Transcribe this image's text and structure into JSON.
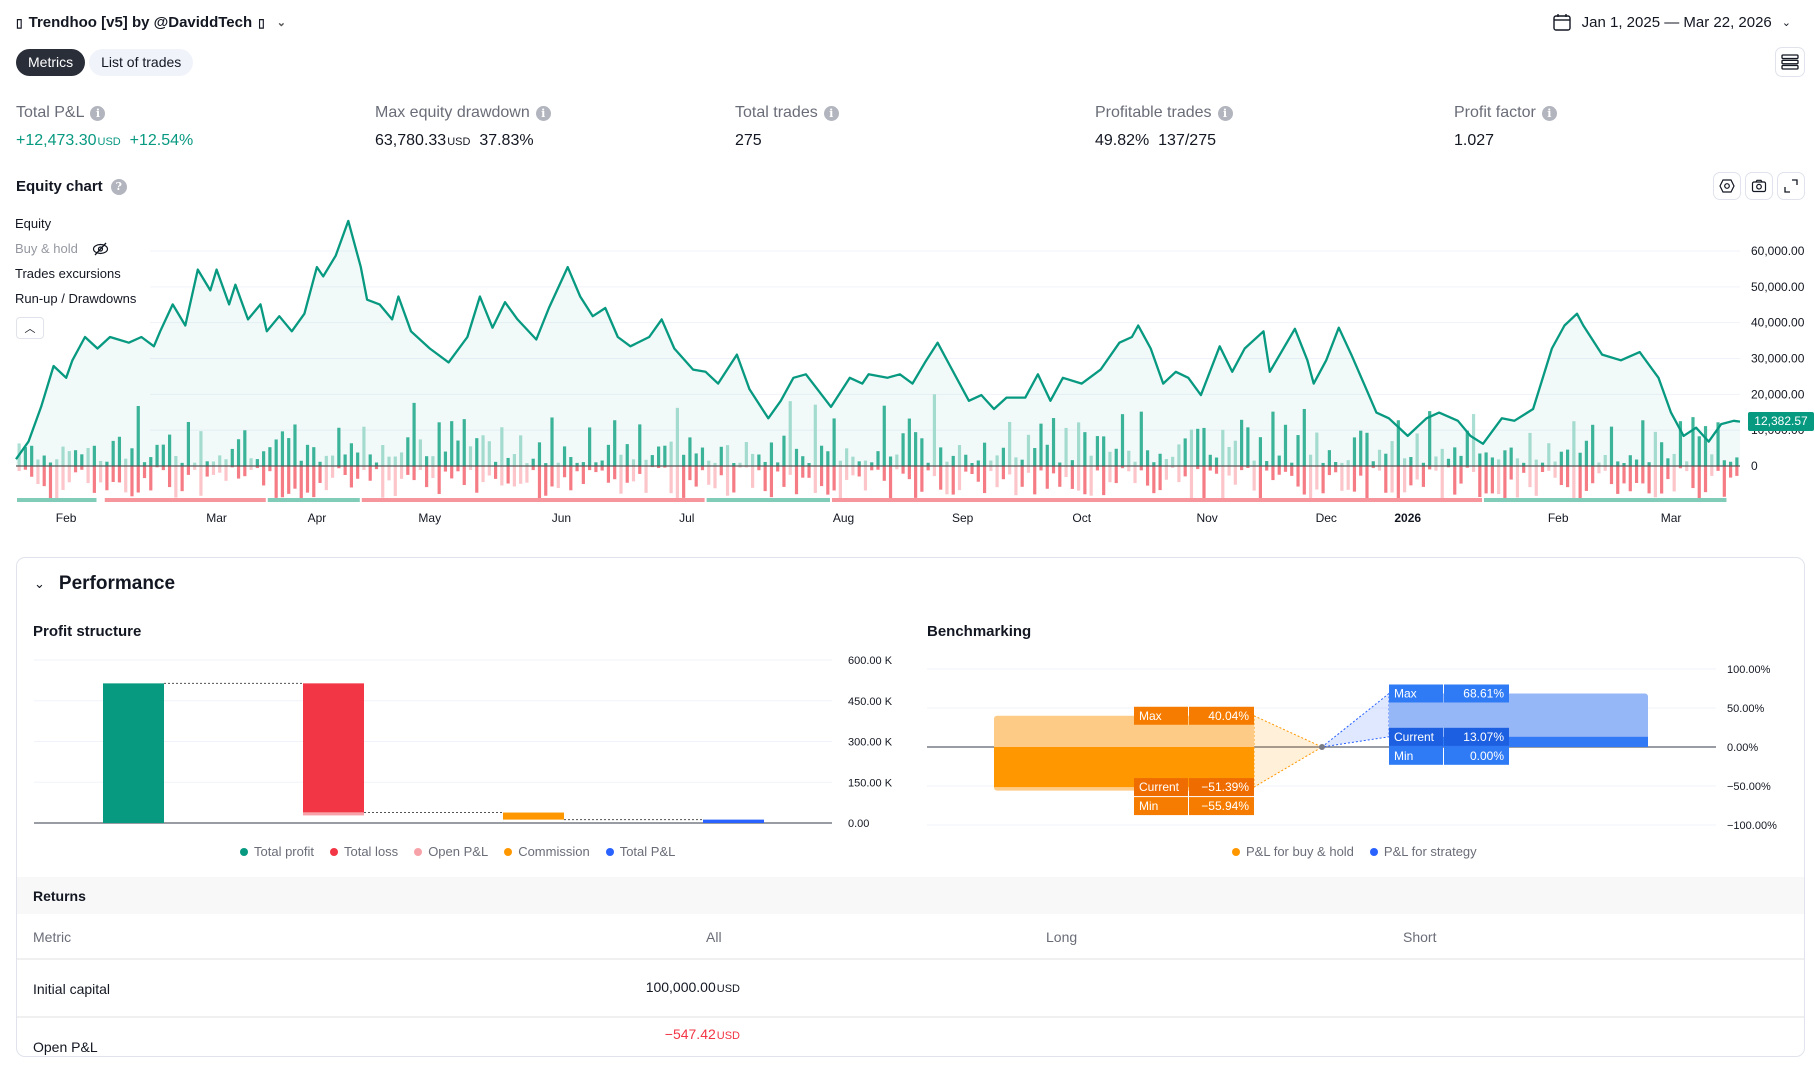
{
  "header": {
    "title": "Trendhoo [v5] by @DaviddTech",
    "date_range": "Jan 1, 2025 — Mar 22, 2026"
  },
  "tabs": [
    {
      "label": "Metrics",
      "active": true
    },
    {
      "label": "List of trades",
      "active": false
    }
  ],
  "metrics": [
    {
      "label": "Total P&L",
      "value": "+12,473.30",
      "unit": "USD",
      "extra": "+12.54%",
      "color": "#089981"
    },
    {
      "label": "Max equity drawdown",
      "value": "63,780.33",
      "unit": "USD",
      "extra": "37.83%"
    },
    {
      "label": "Total trades",
      "value": "275"
    },
    {
      "label": "Profitable trades",
      "value": "49.82%",
      "extra": "137/275"
    },
    {
      "label": "Profit factor",
      "value": "1.027"
    }
  ],
  "equity_chart": {
    "title": "Equity chart",
    "legend": [
      "Equity",
      "Buy & hold",
      "Trades excursions",
      "Run-up / Drawdowns"
    ],
    "hidden_series": [
      "Buy & hold"
    ],
    "last_value_label": "12,382.57"
  },
  "chart_data": [
    {
      "type": "line",
      "title": "Equity chart",
      "ylim": [
        -17600,
        71700
      ],
      "y_ticks": [
        "60,000.00",
        "50,000.00",
        "40,000.00",
        "30,000.00",
        "20,000.00",
        "10,000.00",
        "0"
      ],
      "y_tick_values": [
        60000,
        50000,
        40000,
        30000,
        20000,
        10000,
        0
      ],
      "x_ticks": [
        {
          "label": "Feb",
          "trade": 8
        },
        {
          "label": "Mar",
          "trade": 32
        },
        {
          "label": "Apr",
          "trade": 48
        },
        {
          "label": "May",
          "trade": 66
        },
        {
          "label": "Jun",
          "trade": 87
        },
        {
          "label": "Jul",
          "trade": 107
        },
        {
          "label": "Aug",
          "trade": 132
        },
        {
          "label": "Sep",
          "trade": 151
        },
        {
          "label": "Oct",
          "trade": 170
        },
        {
          "label": "Nov",
          "trade": 190
        },
        {
          "label": "Dec",
          "trade": 209
        },
        {
          "label": "2026",
          "trade": 222,
          "bold": true
        },
        {
          "label": "Feb",
          "trade": 246
        },
        {
          "label": "Mar",
          "trade": 264
        }
      ],
      "xlim": [
        0,
        275
      ],
      "series": [
        {
          "name": "Equity",
          "color": "#089981",
          "points": [
            [
              0,
              1900
            ],
            [
              2,
              6800
            ],
            [
              4,
              16500
            ],
            [
              6,
              27900
            ],
            [
              8,
              24600
            ],
            [
              9,
              29500
            ],
            [
              11,
              36000
            ],
            [
              13,
              32800
            ],
            [
              15,
              36000
            ],
            [
              18,
              34400
            ],
            [
              20,
              36000
            ],
            [
              22,
              33400
            ],
            [
              23,
              37600
            ],
            [
              25,
              45100
            ],
            [
              27,
              39200
            ],
            [
              29,
              54800
            ],
            [
              31,
              49000
            ],
            [
              32,
              54800
            ],
            [
              34,
              45100
            ],
            [
              35,
              50600
            ],
            [
              37,
              40900
            ],
            [
              39,
              45100
            ],
            [
              40,
              37600
            ],
            [
              42,
              41800
            ],
            [
              44,
              37600
            ],
            [
              46,
              42500
            ],
            [
              48,
              55500
            ],
            [
              49,
              52900
            ],
            [
              51,
              58700
            ],
            [
              53,
              68400
            ],
            [
              55,
              55500
            ],
            [
              56,
              46400
            ],
            [
              58,
              45100
            ],
            [
              60,
              40900
            ],
            [
              61,
              47300
            ],
            [
              63,
              37600
            ],
            [
              66,
              32800
            ],
            [
              69,
              28900
            ],
            [
              72,
              36000
            ],
            [
              74,
              47300
            ],
            [
              76,
              38600
            ],
            [
              78,
              45700
            ],
            [
              80,
              40900
            ],
            [
              83,
              35300
            ],
            [
              85,
              44100
            ],
            [
              88,
              55500
            ],
            [
              90,
              47300
            ],
            [
              92,
              41800
            ],
            [
              94,
              44100
            ],
            [
              96,
              36000
            ],
            [
              98,
              33400
            ],
            [
              101,
              36000
            ],
            [
              103,
              40900
            ],
            [
              105,
              32800
            ],
            [
              108,
              26900
            ],
            [
              110,
              26300
            ],
            [
              112,
              23000
            ],
            [
              115,
              31100
            ],
            [
              117,
              21400
            ],
            [
              120,
              13300
            ],
            [
              122,
              18200
            ],
            [
              124,
              24600
            ],
            [
              126,
              25600
            ],
            [
              130,
              16500
            ],
            [
              133,
              24600
            ],
            [
              135,
              23000
            ],
            [
              136,
              25600
            ],
            [
              139,
              24600
            ],
            [
              141,
              25600
            ],
            [
              143,
              23000
            ],
            [
              145,
              28900
            ],
            [
              147,
              34400
            ],
            [
              149,
              27900
            ],
            [
              152,
              18200
            ],
            [
              154,
              19800
            ],
            [
              156,
              15900
            ],
            [
              158,
              19100
            ],
            [
              161,
              19100
            ],
            [
              163,
              25600
            ],
            [
              165,
              18200
            ],
            [
              167,
              24600
            ],
            [
              170,
              23000
            ],
            [
              173,
              26900
            ],
            [
              176,
              34400
            ],
            [
              178,
              36000
            ],
            [
              179,
              39200
            ],
            [
              181,
              32800
            ],
            [
              183,
              23000
            ],
            [
              185,
              26300
            ],
            [
              187,
              24600
            ],
            [
              189,
              19800
            ],
            [
              192,
              33400
            ],
            [
              194,
              26300
            ],
            [
              196,
              32800
            ],
            [
              199,
              37600
            ],
            [
              200,
              26300
            ],
            [
              204,
              38300
            ],
            [
              206,
              29500
            ],
            [
              207,
              23000
            ],
            [
              209,
              29500
            ],
            [
              211,
              38600
            ],
            [
              213,
              31100
            ],
            [
              215,
              23000
            ],
            [
              217,
              14900
            ],
            [
              219,
              13300
            ],
            [
              222,
              8400
            ],
            [
              225,
              13300
            ],
            [
              227,
              14900
            ],
            [
              230,
              12600
            ],
            [
              232,
              8400
            ],
            [
              234,
              6200
            ],
            [
              237,
              13300
            ],
            [
              239,
              12600
            ],
            [
              242,
              15900
            ],
            [
              245,
              32800
            ],
            [
              247,
              39200
            ],
            [
              249,
              42500
            ],
            [
              250,
              39200
            ],
            [
              253,
              31100
            ],
            [
              256,
              29500
            ],
            [
              259,
              31800
            ],
            [
              262,
              24600
            ],
            [
              264,
              14900
            ],
            [
              266,
              8400
            ],
            [
              268,
              10700
            ],
            [
              270,
              6800
            ],
            [
              272,
              11700
            ],
            [
              274,
              12600
            ],
            [
              275,
              12382.57
            ]
          ]
        }
      ],
      "runup_drawdown_segments": [
        {
          "from": 0,
          "to": 13,
          "type": "run-up"
        },
        {
          "from": 14,
          "to": 40,
          "type": "drawdown"
        },
        {
          "from": 40,
          "to": 55,
          "type": "run-up"
        },
        {
          "from": 55,
          "to": 110,
          "type": "drawdown"
        },
        {
          "from": 110,
          "to": 130,
          "type": "run-up"
        },
        {
          "from": 130,
          "to": 234,
          "type": "drawdown"
        },
        {
          "from": 234,
          "to": 273,
          "type": "run-up"
        }
      ],
      "colors": {
        "up": "#089981",
        "down": "#f23645",
        "up_light": "#acdfd3",
        "down_light": "#fbc5c9"
      }
    },
    {
      "type": "bar",
      "title": "Profit structure",
      "categories": [
        "Total profit",
        "Total loss",
        "Open P&L",
        "Commission",
        "Total P&L"
      ],
      "waterfall": [
        {
          "name": "Total profit",
          "from": 0,
          "to": 514000,
          "color": "#089981"
        },
        {
          "name": "Total loss",
          "from": 514000,
          "to": 39000,
          "color": "#f23645"
        },
        {
          "name": "Open P&L",
          "from": 39000,
          "to": 38453,
          "color": "#f7a1a8"
        },
        {
          "name": "Commission",
          "from": 38453,
          "to": 12473,
          "color": "#ff9800"
        },
        {
          "name": "Total P&L",
          "from": 12473,
          "to": 0,
          "color": "#2962ff"
        }
      ],
      "ylim": [
        0,
        600000
      ],
      "y_ticks": [
        "600.00 K",
        "450.00 K",
        "300.00 K",
        "150.00 K",
        "0.00"
      ],
      "y_tick_values": [
        600000,
        450000,
        300000,
        150000,
        0
      ],
      "legend": [
        {
          "label": "Total profit",
          "color": "#089981"
        },
        {
          "label": "Total loss",
          "color": "#f23645"
        },
        {
          "label": "Open P&L",
          "color": "#f7a1a8"
        },
        {
          "label": "Commission",
          "color": "#ff9800"
        },
        {
          "label": "Total P&L",
          "color": "#2962ff"
        }
      ]
    },
    {
      "type": "bar",
      "title": "Benchmarking",
      "ylim": [
        -100,
        100
      ],
      "y_ticks": [
        "100.00%",
        "50.00%",
        "0.00%",
        "−50.00%",
        "−100.00%"
      ],
      "y_tick_values": [
        100,
        50,
        0,
        -50,
        -100
      ],
      "series": [
        {
          "name": "P&L for buy & hold",
          "color": "#ff9800",
          "max": 40.04,
          "current": -51.39,
          "min": -55.94,
          "labels": {
            "max": "40.04%",
            "current": "−51.39%",
            "min": "−55.94%"
          }
        },
        {
          "name": "P&L for strategy",
          "color": "#2962ff",
          "max": 68.61,
          "current": 13.07,
          "min": 0.0,
          "labels": {
            "max": "68.61%",
            "current": "13.07%",
            "min": "0.00%"
          }
        }
      ],
      "row_labels": {
        "max": "Max",
        "current": "Current",
        "min": "Min"
      }
    }
  ],
  "performance": {
    "title": "Performance",
    "profit_structure_title": "Profit structure",
    "benchmarking_title": "Benchmarking"
  },
  "returns": {
    "title": "Returns",
    "columns": [
      "Metric",
      "All",
      "Long",
      "Short"
    ],
    "rows": [
      {
        "metric": "Initial capital",
        "all": "100,000.00",
        "unit": "USD"
      },
      {
        "metric": "Open P&L",
        "all": "−547.42",
        "unit": "USD",
        "color": "#f23645"
      }
    ]
  }
}
